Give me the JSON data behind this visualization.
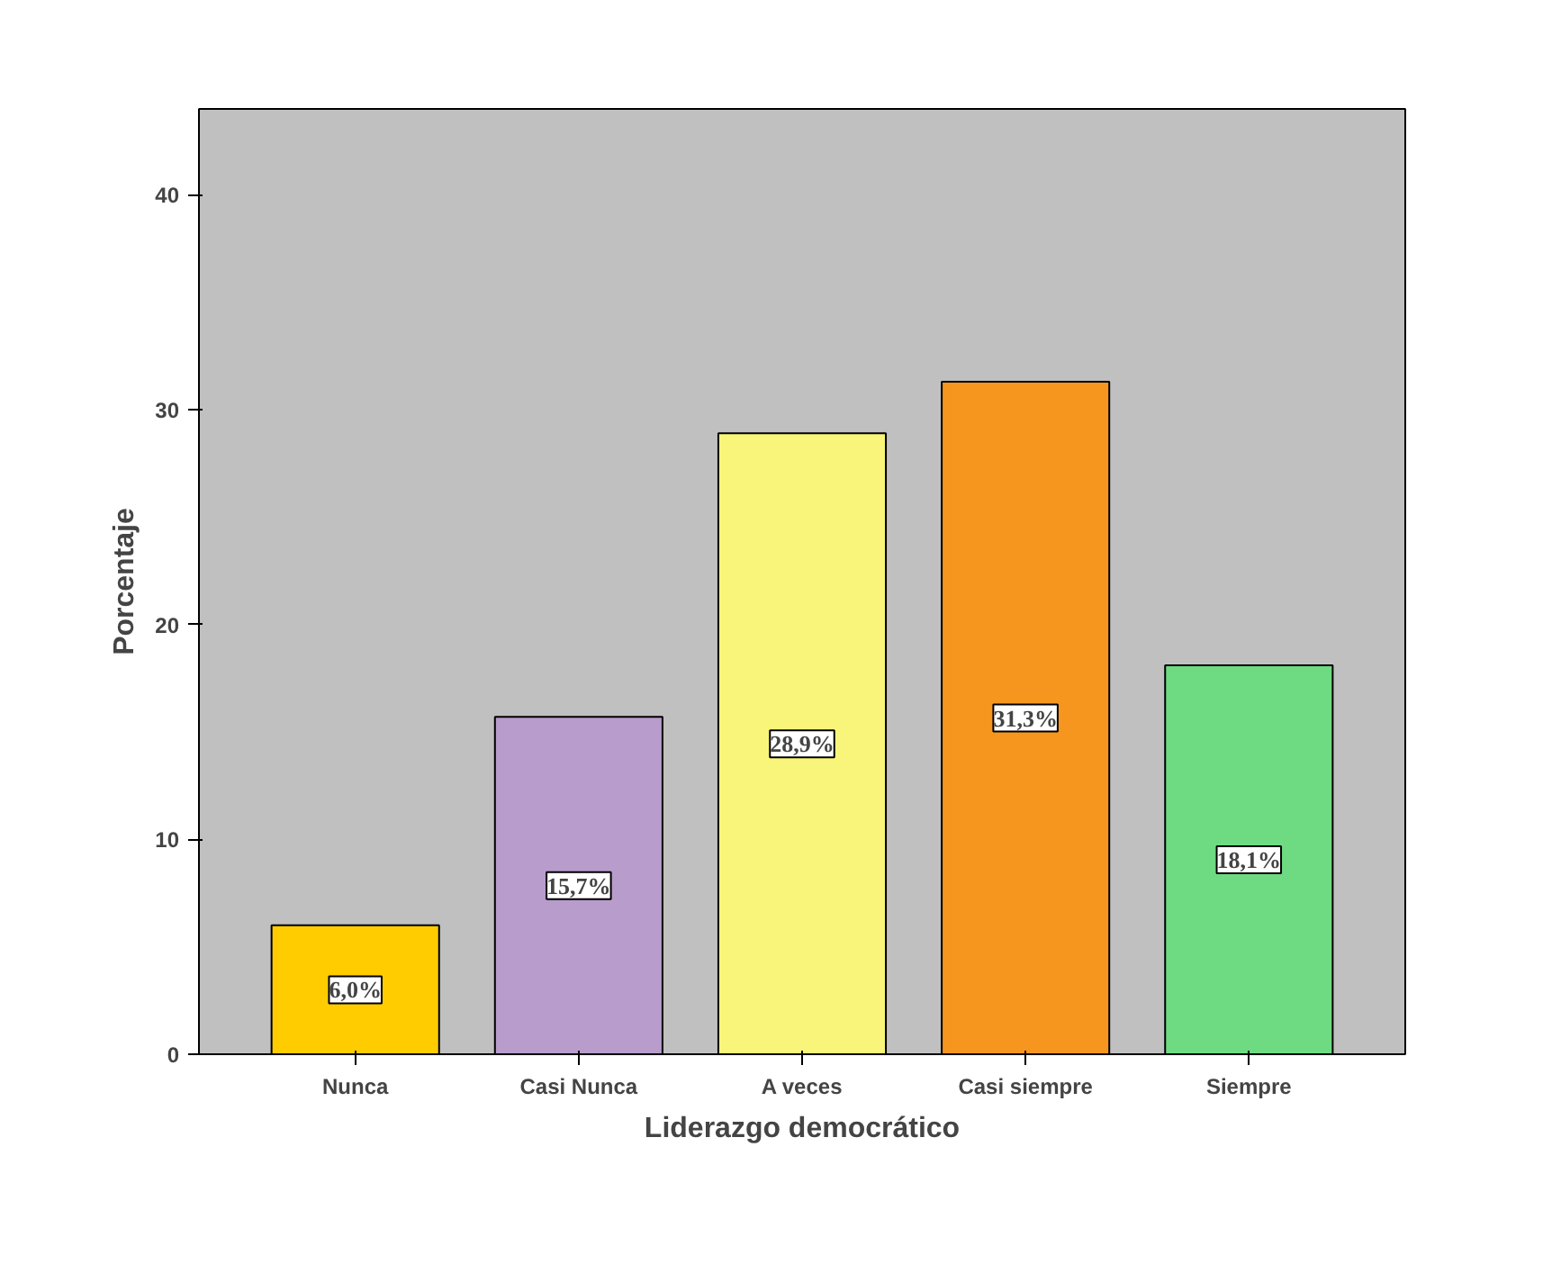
{
  "chart_data": {
    "type": "bar",
    "xlabel": "Liderazgo democrático",
    "ylabel": "Porcentaje",
    "categories": [
      "Nunca",
      "Casi Nunca",
      "A veces",
      "Casi siempre",
      "Siempre"
    ],
    "values": [
      6.0,
      15.7,
      28.9,
      31.3,
      18.1
    ],
    "colors": [
      "#ffcc00",
      "#b89ccb",
      "#f9f57a",
      "#f7961e",
      "#6edb82"
    ],
    "value_labels": [
      "6,0%",
      "15,7%",
      "28,9%",
      "31,3%",
      "18,1%"
    ],
    "ylim": [
      0,
      44
    ],
    "yticks": [
      0,
      10,
      20,
      30,
      40
    ],
    "grid": false
  }
}
